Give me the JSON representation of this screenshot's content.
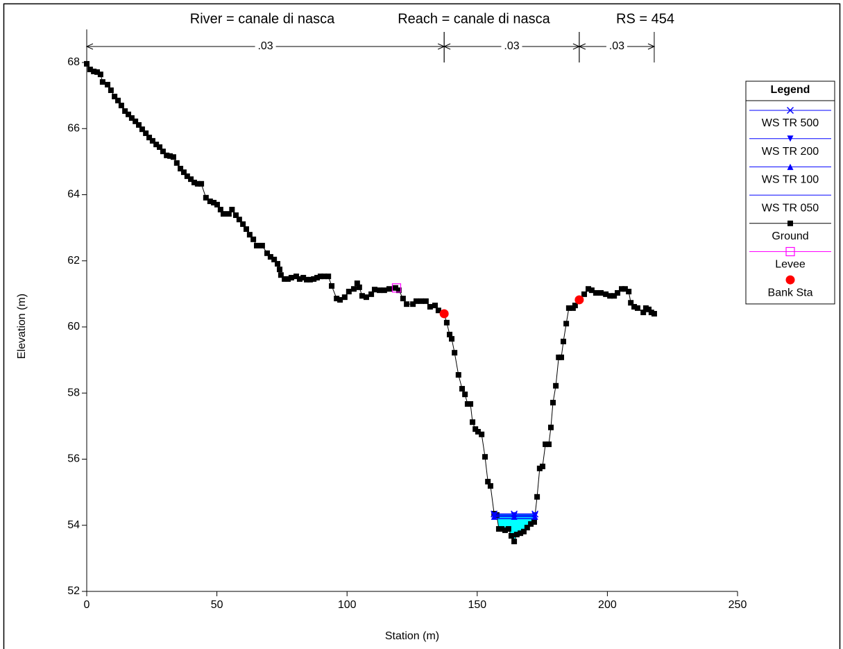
{
  "chart_data": {
    "type": "cross-section",
    "title_parts": [
      "River = canale di nasca",
      "Reach = canale di nasca",
      "RS = 454"
    ],
    "xlabel": "Station (m)",
    "ylabel": "Elevation (m)",
    "xlim": [
      0,
      250
    ],
    "xticks": [
      0,
      50,
      100,
      150,
      200,
      250
    ],
    "ylim": [
      52,
      69
    ],
    "yticks": [
      52,
      54,
      56,
      58,
      60,
      62,
      64,
      66,
      68
    ],
    "legend": "right",
    "legend_title": "Legend",
    "n_regions": [
      {
        "label": ".03",
        "start": 0,
        "end": 137.3
      },
      {
        "label": ".03",
        "start": 137.3,
        "end": 189.2
      },
      {
        "label": ".03",
        "start": 189.2,
        "end": 218.0
      }
    ],
    "series": [
      {
        "name": "WS TR 500",
        "color": "#0000ff",
        "marker": "x",
        "x": [
          156.5,
          164.2,
          172.2
        ],
        "values": [
          54.34,
          54.34,
          54.34
        ]
      },
      {
        "name": "WS TR 200",
        "color": "#0000ff",
        "marker": "triangle-down",
        "x": [
          156.5,
          164.2,
          172.2
        ],
        "values": [
          54.3,
          54.3,
          54.3
        ]
      },
      {
        "name": "WS TR 100",
        "color": "#0000ff",
        "marker": "triangle-up",
        "x": [
          156.5,
          164.2,
          172.2
        ],
        "values": [
          54.26,
          54.26,
          54.26
        ]
      },
      {
        "name": "WS TR 050",
        "color": "#0000ff",
        "marker": "none",
        "x": [
          156.5,
          164.2,
          172.2
        ],
        "values": [
          54.2,
          54.2,
          54.2
        ]
      }
    ],
    "water_color": "#00ffff",
    "ground": {
      "name": "Ground",
      "color": "#000000",
      "x": [
        0,
        1.3,
        2.7,
        4.0,
        5.3,
        6.1,
        8.0,
        9.3,
        10.7,
        12.0,
        13.3,
        14.7,
        16.0,
        17.3,
        18.7,
        20.0,
        21.3,
        22.7,
        24.0,
        25.3,
        26.7,
        28.0,
        29.3,
        30.7,
        32.0,
        33.3,
        34.6,
        36.0,
        37.3,
        38.6,
        40.0,
        41.3,
        42.6,
        44.0,
        45.8,
        47.4,
        48.8,
        50.1,
        51.4,
        52.5,
        54.6,
        55.8,
        57.3,
        58.6,
        60.0,
        61.3,
        62.6,
        64.0,
        65.3,
        67.4,
        69.3,
        70.6,
        72.0,
        73.3,
        74.1,
        74.6,
        76.0,
        77.3,
        78.6,
        80.5,
        81.8,
        83.2,
        84.5,
        85.8,
        87.2,
        88.5,
        89.8,
        91.2,
        92.8,
        94.1,
        96.0,
        97.3,
        99.1,
        100.7,
        102.6,
        103.9,
        104.7,
        105.8,
        107.4,
        109.3,
        110.6,
        112.5,
        114.3,
        116.2,
        118.6,
        119.9,
        121.5,
        122.9,
        125.3,
        126.6,
        128.5,
        130.3,
        131.9,
        133.8,
        135.1,
        137.3,
        138.3,
        139.4,
        140.2,
        141.3,
        142.8,
        144.2,
        145.3,
        146.3,
        147.4,
        148.2,
        149.3,
        150.3,
        151.7,
        153.0,
        154.1,
        155.1,
        156.5,
        157.5,
        158.3,
        159.4,
        160.7,
        162.0,
        163.1,
        164.2,
        165.2,
        166.6,
        167.9,
        169.2,
        170.6,
        171.9,
        173.0,
        174.0,
        175.1,
        176.2,
        177.5,
        178.3,
        179.1,
        180.2,
        181.3,
        182.3,
        183.1,
        184.2,
        185.2,
        186.8,
        187.6,
        189.2,
        191.1,
        192.7,
        194.0,
        195.6,
        197.5,
        199.4,
        201.0,
        202.6,
        203.9,
        205.5,
        206.8,
        208.2,
        209.0,
        210.3,
        211.6,
        213.8,
        214.8,
        215.9,
        216.9,
        218.0
      ],
      "values": [
        67.96,
        67.79,
        67.73,
        67.71,
        67.64,
        67.41,
        67.33,
        67.16,
        66.97,
        66.85,
        66.7,
        66.53,
        66.43,
        66.32,
        66.22,
        66.11,
        65.98,
        65.86,
        65.73,
        65.63,
        65.52,
        65.44,
        65.31,
        65.19,
        65.17,
        65.14,
        64.96,
        64.79,
        64.68,
        64.56,
        64.47,
        64.37,
        64.33,
        64.33,
        63.91,
        63.8,
        63.76,
        63.7,
        63.55,
        63.42,
        63.42,
        63.55,
        63.38,
        63.25,
        63.11,
        62.96,
        62.79,
        62.65,
        62.46,
        62.46,
        62.23,
        62.12,
        62.04,
        61.91,
        61.74,
        61.57,
        61.45,
        61.45,
        61.49,
        61.53,
        61.45,
        61.49,
        61.43,
        61.43,
        61.45,
        61.49,
        61.53,
        61.53,
        61.53,
        61.24,
        60.86,
        60.82,
        60.9,
        61.07,
        61.15,
        61.32,
        61.2,
        60.94,
        60.9,
        60.99,
        61.13,
        61.11,
        61.11,
        61.15,
        61.18,
        61.11,
        60.86,
        60.69,
        60.69,
        60.78,
        60.78,
        60.78,
        60.61,
        60.65,
        60.5,
        60.4,
        60.13,
        59.77,
        59.64,
        59.22,
        58.55,
        58.13,
        57.96,
        57.67,
        57.67,
        57.12,
        56.91,
        56.83,
        56.75,
        56.07,
        55.32,
        55.19,
        54.35,
        54.31,
        53.89,
        53.89,
        53.85,
        53.89,
        53.68,
        53.51,
        53.72,
        53.76,
        53.81,
        53.93,
        54.04,
        54.1,
        54.86,
        55.72,
        55.78,
        56.45,
        56.45,
        56.96,
        57.71,
        58.22,
        59.08,
        59.08,
        59.56,
        60.1,
        60.57,
        60.57,
        60.65,
        60.82,
        60.99,
        61.15,
        61.11,
        61.03,
        61.03,
        60.99,
        60.94,
        60.94,
        61.03,
        61.15,
        61.15,
        61.07,
        60.73,
        60.61,
        60.57,
        60.44,
        60.57,
        60.53,
        60.44,
        60.4
      ]
    },
    "levee": {
      "name": "Levee",
      "color": "#ff00ff",
      "x": [
        119.0
      ],
      "values": [
        61.18
      ]
    },
    "bank_stations": {
      "name": "Bank Sta",
      "color": "#ff0000",
      "x": [
        137.3,
        189.2
      ],
      "values": [
        60.4,
        60.82
      ]
    }
  }
}
